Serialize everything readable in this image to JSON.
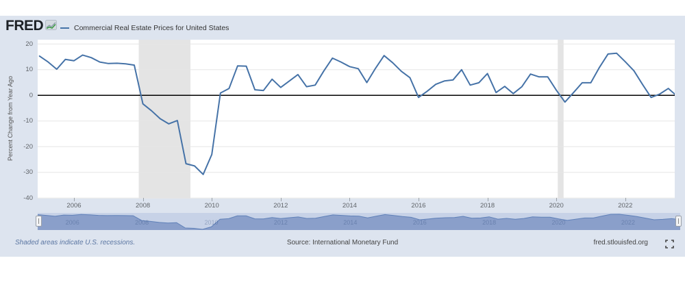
{
  "header": {
    "logo_text": "FRED",
    "legend_label": "Commercial Real Estate Prices for United States"
  },
  "icons": {
    "logo_chart": "line-chart-icon",
    "fullscreen": "fullscreen-expand-icon",
    "nav_handles": "drag-handle-icon"
  },
  "colors": {
    "panel_bg": "#dde4ef",
    "series_line": "#4572a7",
    "recession_band": "#e4e4e4",
    "gridline": "#e6e6e6",
    "zero_line": "#000000",
    "nav_track": "#c7d2e7",
    "nav_fill": "#8399c7",
    "nav_line": "#5f80b8",
    "nav_year_label": "#1f3a6e"
  },
  "chart_data": {
    "type": "line",
    "title": "Commercial Real Estate Prices for United States",
    "xlabel": "",
    "ylabel": "Percent Change from Year Ago",
    "ylim": [
      -40,
      20
    ],
    "y_ticks": [
      20,
      10,
      0,
      -10,
      -20,
      -30,
      -40
    ],
    "x_ticks": [
      2006,
      2008,
      2010,
      2012,
      2014,
      2016,
      2018,
      2020,
      2022
    ],
    "x_start_year": 2005.0,
    "x_step_years": 0.25,
    "frequency": "quarterly",
    "values": [
      15.3,
      13.0,
      10.2,
      14.0,
      13.5,
      15.7,
      14.7,
      13.0,
      12.4,
      12.5,
      12.3,
      11.8,
      -3.3,
      -6.0,
      -9.1,
      -11.1,
      -9.8,
      -26.6,
      -27.5,
      -30.8,
      -23.0,
      0.9,
      2.7,
      11.5,
      11.4,
      2.2,
      1.9,
      6.3,
      3.1,
      5.6,
      8.1,
      3.4,
      4.0,
      9.5,
      14.5,
      13.0,
      11.2,
      10.4,
      5.0,
      10.5,
      15.5,
      12.7,
      9.4,
      6.9,
      -0.8,
      1.6,
      4.3,
      5.6,
      6.0,
      10.0,
      4.0,
      4.9,
      8.5,
      1.1,
      3.5,
      0.7,
      3.4,
      8.3,
      7.2,
      7.2,
      2.0,
      -2.6,
      1.1,
      4.9,
      4.9,
      10.9,
      16.1,
      16.4,
      13.1,
      9.6,
      4.3,
      -0.8,
      0.5,
      2.7,
      -0.3
    ],
    "recessions": [
      {
        "start": 2007.88,
        "end": 2009.38
      },
      {
        "start": 2020.04,
        "end": 2020.21
      }
    ],
    "legend_position": "top-left",
    "grid": true
  },
  "footer": {
    "recession_note": "Shaded areas indicate U.S. recessions.",
    "source": "Source: International Monetary Fund",
    "site": "fred.stlouisfed.org"
  }
}
